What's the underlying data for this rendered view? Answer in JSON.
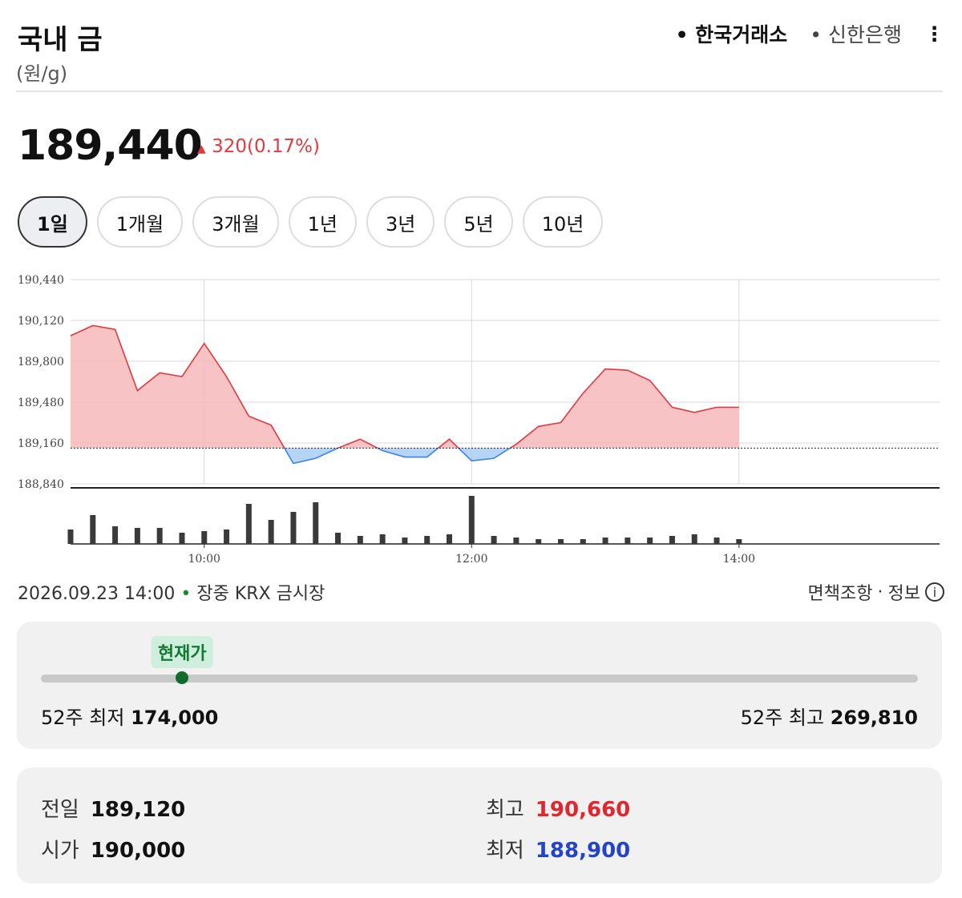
{
  "header": {
    "title": "국내 금",
    "unit": "(원/g)",
    "sources": [
      "한국거래소",
      "신한은행"
    ]
  },
  "price": {
    "current": {
      "value": 189440,
      "label": "189,440"
    },
    "change": "320",
    "change_rate": "(0.17%)"
  },
  "tabs": [
    "1일",
    "1개월",
    "3개월",
    "1년",
    "3년",
    "5년",
    "10년"
  ],
  "chart_data": {
    "type": "line",
    "x": [
      "09:00",
      "09:10",
      "09:20",
      "09:30",
      "09:40",
      "09:50",
      "10:00",
      "10:10",
      "10:20",
      "10:30",
      "10:40",
      "10:50",
      "11:00",
      "11:10",
      "11:20",
      "11:30",
      "11:40",
      "11:50",
      "12:00",
      "12:10",
      "12:20",
      "12:30",
      "12:40",
      "12:50",
      "13:00",
      "13:10",
      "13:20",
      "13:30",
      "13:40",
      "13:50",
      "14:00"
    ],
    "values": [
      190000,
      190080,
      190050,
      189570,
      189710,
      189680,
      189940,
      189680,
      189370,
      189300,
      189000,
      189040,
      189120,
      189190,
      189100,
      189050,
      189050,
      189190,
      189020,
      189040,
      189150,
      189290,
      189320,
      189550,
      189740,
      189730,
      189650,
      189440,
      189400,
      189440,
      189440
    ],
    "volume": [
      18,
      36,
      22,
      20,
      20,
      14,
      16,
      18,
      50,
      30,
      40,
      52,
      14,
      10,
      12,
      8,
      10,
      12,
      60,
      10,
      8,
      6,
      6,
      6,
      8,
      8,
      8,
      10,
      12,
      8,
      6
    ],
    "xlim": [
      "09:00",
      "15:30"
    ],
    "xticks": [
      "10:00",
      "12:00",
      "14:00"
    ],
    "ylim": [
      188840,
      190440
    ],
    "yticks": [
      {
        "value": 188840,
        "label": "188,840"
      },
      {
        "value": 189160,
        "label": "189,160"
      },
      {
        "value": 189480,
        "label": "189,480"
      },
      {
        "value": 189800,
        "label": "189,800"
      },
      {
        "value": 190120,
        "label": "190,120"
      },
      {
        "value": 190440,
        "label": "190,440"
      }
    ],
    "baseline": 189120,
    "grid": true,
    "color": "#e0393e",
    "down_color": "#3b82e6",
    "volume_color": "#3a3a3a"
  },
  "footer": {
    "datetime": "2026.09.23 14:00",
    "status": "장중 KRX 금시장",
    "disclaimer": "면책조항",
    "info": "정보"
  },
  "range": {
    "marker": "현재가",
    "low_label": "52주 최저",
    "low": {
      "value": 174000,
      "label": "174,000"
    },
    "high_label": "52주 최고",
    "high": {
      "value": 269810,
      "label": "269,810"
    }
  },
  "stats": [
    [
      "전일",
      "189,120"
    ],
    [
      "시가",
      "190,000"
    ],
    [
      "최고",
      "190,660"
    ],
    [
      "최저",
      "188,900"
    ]
  ]
}
